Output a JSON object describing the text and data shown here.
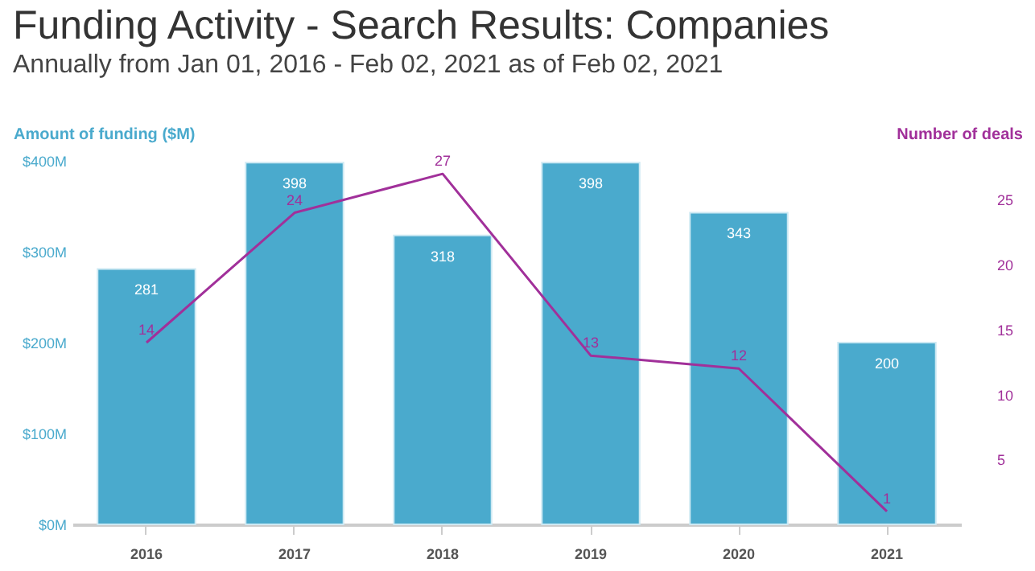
{
  "chart_data": {
    "type": "bar",
    "title": "Funding Activity - Search Results: Companies",
    "subtitle": "Annually from Jan 01, 2016 - Feb 02, 2021 as of Feb 02, 2021",
    "ylabel": "Amount of funding ($M)",
    "y2label": "Number of deals",
    "categories": [
      "2016",
      "2017",
      "2018",
      "2019",
      "2020",
      "2021"
    ],
    "series": [
      {
        "color": "#4aaacd",
        "values": [
          281,
          398,
          318,
          398,
          343,
          200
        ]
      },
      {
        "type": "line",
        "axis": "y2",
        "color": "#a1309a",
        "values": [
          14,
          24,
          27,
          13,
          12,
          1
        ]
      }
    ],
    "ylim": [
      0,
      400
    ],
    "yticks": [
      {
        "value": 0,
        "label": "$0M"
      },
      {
        "value": 100,
        "label": "$100M"
      },
      {
        "value": 200,
        "label": "$200M"
      },
      {
        "value": 300,
        "label": "$300M"
      },
      {
        "value": 400,
        "label": "$400M"
      }
    ],
    "y2lim": [
      0,
      28
    ],
    "y2ticks": [
      5,
      10,
      15,
      20,
      25
    ],
    "data_labels": true,
    "grid": false,
    "marker": "none",
    "line_style": "solid"
  }
}
